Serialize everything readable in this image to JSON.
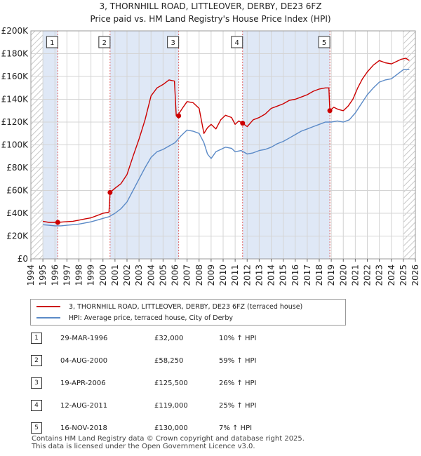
{
  "title_line1": "3, THORNHILL ROAD, LITTLEOVER, DERBY, DE23 6FZ",
  "title_line2": "Price paid vs. HM Land Registry's House Price Index (HPI)",
  "colors": {
    "property": "#cc0000",
    "hpi": "#5b8ac7",
    "shade": "#dfe8f6",
    "grid": "#d4d4d4"
  },
  "chart_data": {
    "type": "line",
    "xlim": [
      1994,
      2026
    ],
    "ylim": [
      0,
      200000
    ],
    "y_ticks": [
      0,
      20000,
      40000,
      60000,
      80000,
      100000,
      120000,
      140000,
      160000,
      180000,
      200000
    ],
    "y_tick_labels": [
      "£0",
      "£20K",
      "£40K",
      "£60K",
      "£80K",
      "£100K",
      "£120K",
      "£140K",
      "£160K",
      "£180K",
      "£200K"
    ],
    "x_ticks": [
      "1994",
      "1995",
      "1996",
      "1997",
      "1998",
      "1999",
      "2000",
      "2001",
      "2002",
      "2003",
      "2004",
      "2005",
      "2006",
      "2007",
      "2008",
      "2009",
      "2010",
      "2011",
      "2012",
      "2013",
      "2014",
      "2015",
      "2016",
      "2017",
      "2018",
      "2019",
      "2020",
      "2021",
      "2022",
      "2023",
      "2024",
      "2025",
      "2026"
    ],
    "series": [
      {
        "name": "3, THORNHILL ROAD, LITTLEOVER, DERBY, DE23 6FZ (terraced house)",
        "x": [
          1995.0,
          1995.5,
          1996.24,
          1996.8,
          1997.5,
          1998.0,
          1998.5,
          1999.0,
          1999.5,
          2000.0,
          2000.5,
          2000.59,
          2001.0,
          2001.5,
          2002.0,
          2002.5,
          2003.0,
          2003.5,
          2004.0,
          2004.5,
          2005.0,
          2005.5,
          2005.95,
          2006.1,
          2006.3,
          2006.6,
          2007.0,
          2007.5,
          2008.0,
          2008.4,
          2008.7,
          2009.0,
          2009.4,
          2009.8,
          2010.2,
          2010.7,
          2011.0,
          2011.3,
          2011.62,
          2012.0,
          2012.5,
          2013.0,
          2013.5,
          2014.0,
          2014.5,
          2015.0,
          2015.5,
          2016.0,
          2016.5,
          2017.0,
          2017.5,
          2018.0,
          2018.5,
          2018.8,
          2018.88,
          2019.2,
          2019.6,
          2020.0,
          2020.4,
          2020.8,
          2021.2,
          2021.6,
          2022.0,
          2022.5,
          2023.0,
          2023.5,
          2024.0,
          2024.4,
          2024.8,
          2025.2,
          2025.5
        ],
        "y": [
          33000,
          32000,
          32000,
          32500,
          33000,
          34000,
          35000,
          36000,
          38000,
          40000,
          41000,
          58250,
          62000,
          66000,
          74000,
          90000,
          105000,
          122000,
          143000,
          150000,
          153000,
          157000,
          156000,
          125500,
          127000,
          132000,
          138000,
          137000,
          132000,
          110000,
          115000,
          118000,
          114000,
          122000,
          126000,
          124000,
          118000,
          121000,
          119000,
          116000,
          122000,
          124000,
          127000,
          132000,
          134000,
          136000,
          139000,
          140000,
          142000,
          144000,
          147000,
          149000,
          150000,
          150000,
          130000,
          133000,
          131000,
          130000,
          134000,
          140000,
          150000,
          158000,
          164000,
          170000,
          174000,
          172000,
          171000,
          173000,
          175000,
          176000,
          174000
        ]
      },
      {
        "name": "HPI: Average price, terraced house, City of Derby",
        "x": [
          1995.0,
          1995.5,
          1996.0,
          1996.5,
          1997.0,
          1997.5,
          1998.0,
          1998.5,
          1999.0,
          1999.5,
          2000.0,
          2000.5,
          2001.0,
          2001.5,
          2002.0,
          2002.5,
          2003.0,
          2003.5,
          2004.0,
          2004.5,
          2005.0,
          2005.5,
          2006.0,
          2006.5,
          2007.0,
          2007.5,
          2008.0,
          2008.4,
          2008.7,
          2009.0,
          2009.4,
          2009.8,
          2010.2,
          2010.7,
          2011.0,
          2011.5,
          2012.0,
          2012.5,
          2013.0,
          2013.5,
          2014.0,
          2014.5,
          2015.0,
          2015.5,
          2016.0,
          2016.5,
          2017.0,
          2017.5,
          2018.0,
          2018.5,
          2019.0,
          2019.5,
          2020.0,
          2020.5,
          2021.0,
          2021.5,
          2022.0,
          2022.5,
          2023.0,
          2023.5,
          2024.0,
          2024.5,
          2025.0,
          2025.5
        ],
        "y": [
          30000,
          29500,
          29000,
          29000,
          29500,
          30000,
          30500,
          31500,
          32500,
          34000,
          35500,
          37000,
          40000,
          44000,
          50000,
          60000,
          70000,
          80000,
          89000,
          94000,
          96000,
          99000,
          102000,
          108000,
          113000,
          112000,
          110000,
          102000,
          92000,
          88000,
          94000,
          96000,
          98000,
          97000,
          94000,
          95000,
          92000,
          93000,
          95000,
          96000,
          98000,
          101000,
          103000,
          106000,
          109000,
          112000,
          114000,
          116000,
          118000,
          120000,
          120000,
          121000,
          120000,
          122000,
          128000,
          136000,
          144000,
          150000,
          155000,
          157000,
          158000,
          162000,
          166000,
          166000
        ]
      }
    ],
    "sales": [
      {
        "label": "1",
        "x": 1996.24,
        "y": 32000
      },
      {
        "label": "2",
        "x": 2000.59,
        "y": 58250
      },
      {
        "label": "3",
        "x": 2006.3,
        "y": 125500
      },
      {
        "label": "4",
        "x": 2011.62,
        "y": 119000
      },
      {
        "label": "5",
        "x": 2018.88,
        "y": 130000
      }
    ],
    "shaded_ranges": [
      [
        1995.0,
        1996.24
      ],
      [
        2000.59,
        2006.3
      ],
      [
        2011.62,
        2018.88
      ]
    ],
    "hatched_ranges": [
      [
        1994,
        1995.0
      ],
      [
        2025.0,
        2026
      ]
    ]
  },
  "legend": {
    "property_label": "3, THORNHILL ROAD, LITTLEOVER, DERBY, DE23 6FZ (terraced house)",
    "hpi_label": "HPI: Average price, terraced house, City of Derby"
  },
  "sales_table": [
    {
      "num": "1",
      "date": "29-MAR-1996",
      "price": "£32,000",
      "hpi": "10% ↑ HPI"
    },
    {
      "num": "2",
      "date": "04-AUG-2000",
      "price": "£58,250",
      "hpi": "59% ↑ HPI"
    },
    {
      "num": "3",
      "date": "19-APR-2006",
      "price": "£125,500",
      "hpi": "26% ↑ HPI"
    },
    {
      "num": "4",
      "date": "12-AUG-2011",
      "price": "£119,000",
      "hpi": "25% ↑ HPI"
    },
    {
      "num": "5",
      "date": "16-NOV-2018",
      "price": "£130,000",
      "hpi": "7% ↑ HPI"
    }
  ],
  "footer_line1": "Contains HM Land Registry data © Crown copyright and database right 2025.",
  "footer_line2": "This data is licensed under the Open Government Licence v3.0."
}
